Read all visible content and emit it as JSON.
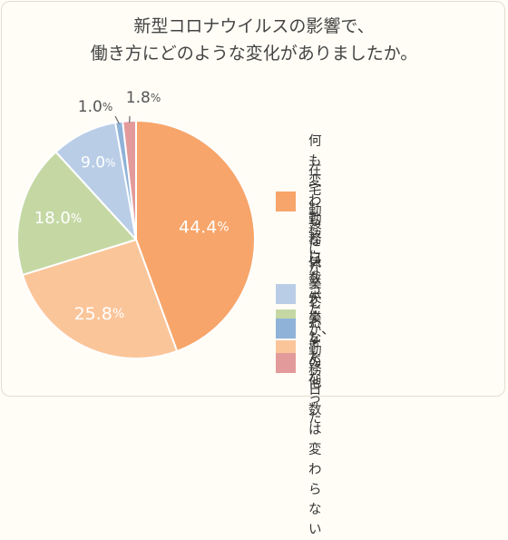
{
  "title_line1": "新型コロナウイルスの影響で、",
  "title_line2": "働き方にどのような変化がありましたか。",
  "chart_data": {
    "type": "pie",
    "slices": [
      {
        "label": "何も変わらない",
        "value": 44.4,
        "display": "44.4%",
        "color": "#f7a56a"
      },
      {
        "label": "在宅勤務になったが、\n勤務日数は変わらない",
        "value": 25.8,
        "display": "25.8%",
        "color": "#fbc59a"
      },
      {
        "label": "勤務日数が少なくなった",
        "value": 18.0,
        "display": "18.0%",
        "color": "#c5d8a4"
      },
      {
        "label": "休業した",
        "value": 9.0,
        "display": "9.0%",
        "color": "#b9cde6"
      },
      {
        "label": "失業した",
        "value": 1.0,
        "display": "1.0%",
        "color": "#8fb2d8"
      },
      {
        "label": "その他",
        "value": 1.8,
        "display": "1.8%",
        "color": "#e39a9a"
      }
    ]
  }
}
